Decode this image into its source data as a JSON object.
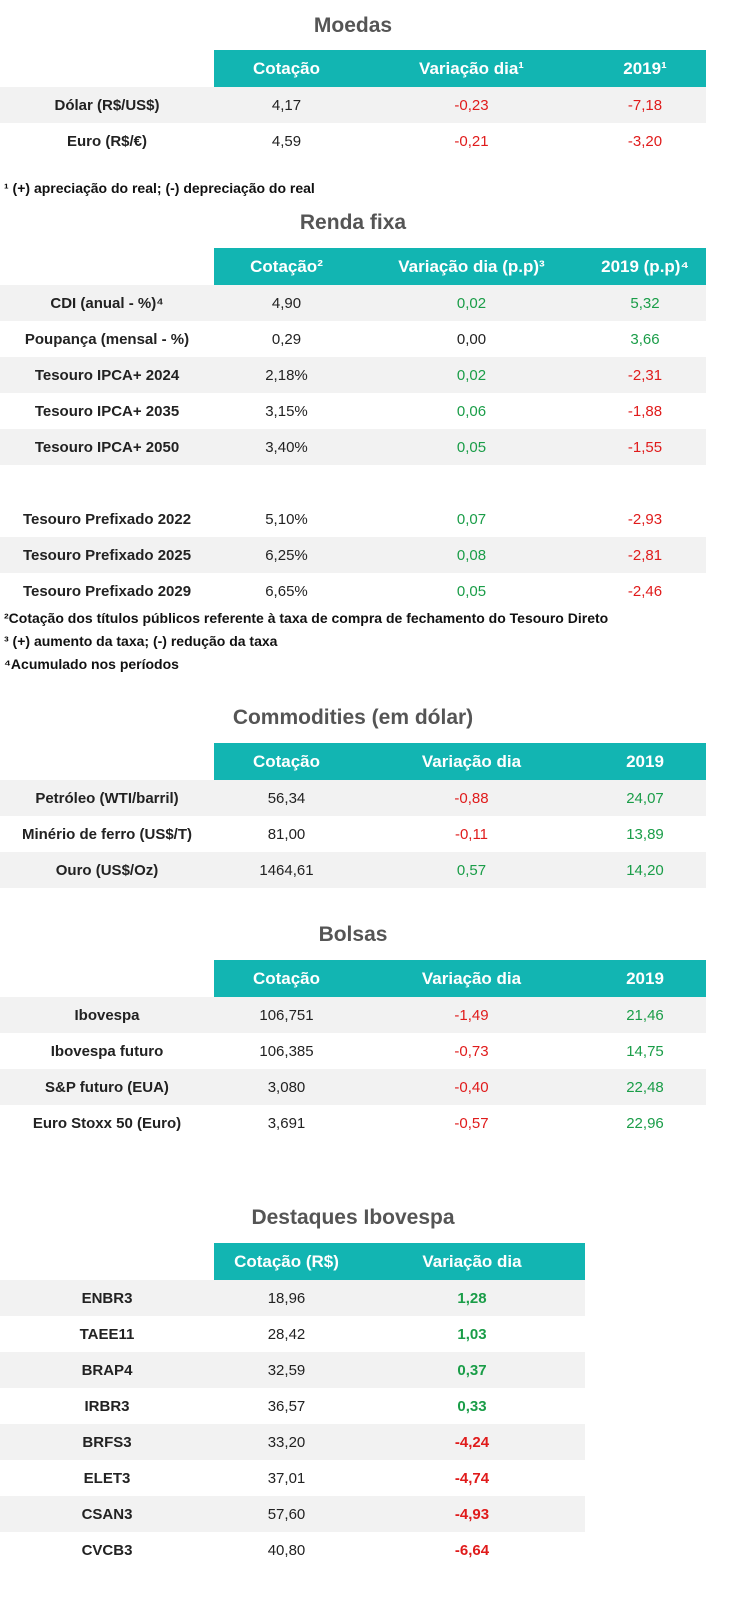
{
  "moedas": {
    "title": "Moedas",
    "headers": [
      "Cotação",
      "Variação dia¹",
      "2019¹"
    ],
    "rows": [
      {
        "label": "Dólar (R$/US$)",
        "cot": "4,17",
        "var": "-0,23",
        "ano": "-7,18",
        "var_sign": "neg",
        "ano_sign": "neg"
      },
      {
        "label": "Euro (R$/€)",
        "cot": "4,59",
        "var": "-0,21",
        "ano": "-3,20",
        "var_sign": "neg",
        "ano_sign": "neg"
      }
    ],
    "note": "¹ (+) apreciação do real; (-) depreciação do real"
  },
  "renda_fixa": {
    "title": "Renda fixa",
    "headers": [
      "Cotação²",
      "Variação dia (p.p)³",
      "2019 (p.p)⁴"
    ],
    "rows_a": [
      {
        "label": "CDI (anual - %)⁴",
        "cot": "4,90",
        "var": "0,02",
        "ano": "5,32",
        "var_sign": "pos",
        "ano_sign": "pos"
      },
      {
        "label": "Poupança (mensal - %)",
        "cot": "0,29",
        "var": "0,00",
        "ano": "3,66",
        "var_sign": "neu",
        "ano_sign": "pos"
      },
      {
        "label": "Tesouro IPCA+ 2024",
        "cot": "2,18%",
        "var": "0,02",
        "ano": "-2,31",
        "var_sign": "pos",
        "ano_sign": "neg"
      },
      {
        "label": "Tesouro IPCA+ 2035",
        "cot": "3,15%",
        "var": "0,06",
        "ano": "-1,88",
        "var_sign": "pos",
        "ano_sign": "neg"
      },
      {
        "label": "Tesouro IPCA+ 2050",
        "cot": "3,40%",
        "var": "0,05",
        "ano": "-1,55",
        "var_sign": "pos",
        "ano_sign": "neg"
      }
    ],
    "rows_b": [
      {
        "label": "Tesouro Prefixado 2022",
        "cot": "5,10%",
        "var": "0,07",
        "ano": "-2,93",
        "var_sign": "pos",
        "ano_sign": "neg"
      },
      {
        "label": "Tesouro Prefixado 2025",
        "cot": "6,25%",
        "var": "0,08",
        "ano": "-2,81",
        "var_sign": "pos",
        "ano_sign": "neg"
      },
      {
        "label": "Tesouro Prefixado 2029",
        "cot": "6,65%",
        "var": "0,05",
        "ano": "-2,46",
        "var_sign": "pos",
        "ano_sign": "neg"
      }
    ],
    "notes": [
      "²Cotação dos títulos públicos referente à taxa de compra de fechamento do Tesouro Direto",
      "³ (+) aumento da taxa; (-) redução da taxa",
      "⁴Acumulado nos períodos"
    ]
  },
  "commodities": {
    "title": "Commodities (em dólar)",
    "headers": [
      "Cotação",
      "Variação dia",
      "2019"
    ],
    "rows": [
      {
        "label": "Petróleo (WTI/barril)",
        "cot": "56,34",
        "var": "-0,88",
        "ano": "24,07",
        "var_sign": "neg",
        "ano_sign": "pos"
      },
      {
        "label": "Minério de ferro (US$/T)",
        "cot": "81,00",
        "var": "-0,11",
        "ano": "13,89",
        "var_sign": "neg",
        "ano_sign": "pos"
      },
      {
        "label": "Ouro (US$/Oz)",
        "cot": "1464,61",
        "var": "0,57",
        "ano": "14,20",
        "var_sign": "pos",
        "ano_sign": "pos"
      }
    ]
  },
  "bolsas": {
    "title": "Bolsas",
    "headers": [
      "Cotação",
      "Variação dia",
      "2019"
    ],
    "rows": [
      {
        "label": "Ibovespa",
        "cot": "106,751",
        "var": "-1,49",
        "ano": "21,46",
        "var_sign": "neg",
        "ano_sign": "pos"
      },
      {
        "label": "Ibovespa futuro",
        "cot": "106,385",
        "var": "-0,73",
        "ano": "14,75",
        "var_sign": "neg",
        "ano_sign": "pos"
      },
      {
        "label": "S&P futuro (EUA)",
        "cot": "3,080",
        "var": "-0,40",
        "ano": "22,48",
        "var_sign": "neg",
        "ano_sign": "pos"
      },
      {
        "label": "Euro Stoxx 50 (Euro)",
        "cot": "3,691",
        "var": "-0,57",
        "ano": "22,96",
        "var_sign": "neg",
        "ano_sign": "pos"
      }
    ]
  },
  "destaques": {
    "title": "Destaques Ibovespa",
    "headers": [
      "Cotação (R$)",
      "Variação dia"
    ],
    "rows": [
      {
        "label": "ENBR3",
        "cot": "18,96",
        "var": "1,28",
        "var_sign": "pos"
      },
      {
        "label": "TAEE11",
        "cot": "28,42",
        "var": "1,03",
        "var_sign": "pos"
      },
      {
        "label": "BRAP4",
        "cot": "32,59",
        "var": "0,37",
        "var_sign": "pos"
      },
      {
        "label": "IRBR3",
        "cot": "36,57",
        "var": "0,33",
        "var_sign": "pos"
      },
      {
        "label": "BRFS3",
        "cot": "33,20",
        "var": "-4,24",
        "var_sign": "neg"
      },
      {
        "label": "ELET3",
        "cot": "37,01",
        "var": "-4,74",
        "var_sign": "neg"
      },
      {
        "label": "CSAN3",
        "cot": "57,60",
        "var": "-4,93",
        "var_sign": "neg"
      },
      {
        "label": "CVCB3",
        "cot": "40,80",
        "var": "-6,64",
        "var_sign": "neg"
      }
    ]
  }
}
